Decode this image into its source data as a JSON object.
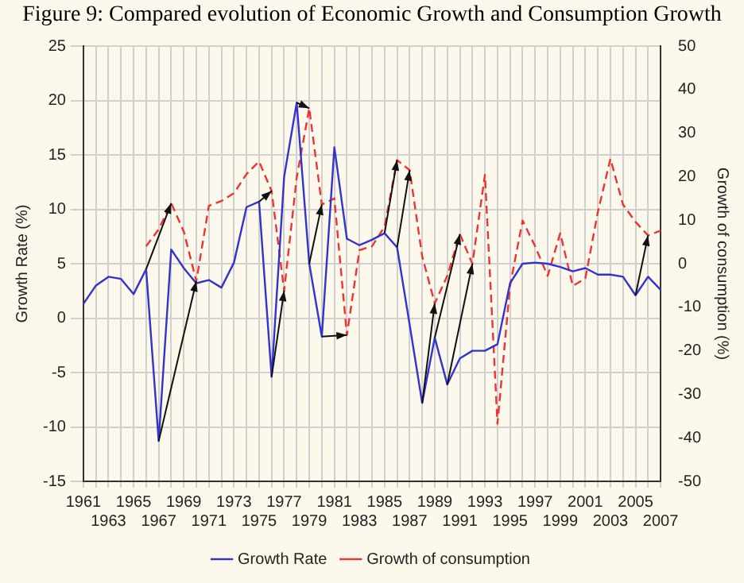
{
  "chart_data": {
    "type": "line",
    "title": "Figure 9: Compared evolution of Economic Growth and Consumption Growth",
    "ylabel": "Growth Rate (%)",
    "y2label": "Growth of consumption (%)",
    "categories": [
      "1961",
      null,
      "1963",
      null,
      "1965",
      null,
      "1967",
      null,
      "1969",
      null,
      "1971",
      null,
      "1973",
      null,
      "1975",
      null,
      "1977",
      null,
      "1979",
      null,
      "1981",
      null,
      "1983",
      null,
      "1985",
      null,
      "1987",
      null,
      "1989",
      null,
      "1991",
      null,
      "1993",
      null,
      "1995",
      null,
      "1997",
      null,
      "1999",
      null,
      "2001",
      null,
      "2003",
      null,
      "2005",
      null,
      "2007"
    ],
    "series": [
      {
        "name": "Growth Rate",
        "color": "#3333cc",
        "line_style": "solid",
        "values": [
          1.3,
          3.0,
          3.8,
          3.6,
          2.2,
          4.5,
          -11.3,
          6.3,
          4.6,
          3.2,
          3.5,
          2.8,
          5.1,
          10.2,
          10.7,
          -5.4,
          13,
          19.8,
          5.0,
          -1.7,
          15.7,
          7.3,
          6.7,
          7.2,
          7.8,
          6.5,
          -0.6,
          -7.8,
          -1.8,
          -6.1,
          -3.7,
          -3.0,
          -3.0,
          -2.4,
          3.2,
          5.0,
          5.1,
          5.0,
          4.7,
          4.3,
          4.6,
          4.0,
          4.0,
          3.8,
          2.1,
          3.8,
          2.6
        ]
      },
      {
        "name": "Growth of consumption",
        "color": "#ee3333",
        "line_style": "dashed",
        "axis": "y2",
        "values": [
          null,
          null,
          null,
          null,
          null,
          4.0,
          7.9,
          13.9,
          7.4,
          -4.0,
          13.3,
          14.4,
          16.2,
          20.6,
          23.5,
          16.7,
          -6.2,
          19.8,
          35.7,
          13.6,
          15.0,
          -16.4,
          3.1,
          4.0,
          8.5,
          23.8,
          21.5,
          1.7,
          -9.1,
          -2.8,
          6.8,
          0,
          20.4,
          -36.8,
          -5.1,
          9.9,
          4.0,
          -2.8,
          7.0,
          -5.1,
          -3.4,
          11.9,
          24.1,
          13.6,
          9.6,
          6.5,
          7.6
        ]
      }
    ],
    "ylim": [
      -15,
      25
    ],
    "yticks": [
      -15,
      -10,
      -5,
      0,
      5,
      10,
      15,
      20,
      25
    ],
    "y2lim": [
      -50,
      50
    ],
    "y2ticks": [
      -50,
      -40,
      -30,
      -20,
      -10,
      0,
      10,
      20,
      30,
      40,
      50
    ],
    "grid": true,
    "legend": "bottom",
    "marker": "none"
  }
}
